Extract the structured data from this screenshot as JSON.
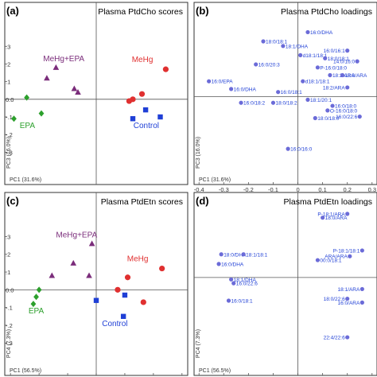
{
  "chart_data": [
    {
      "type": "scatter",
      "panel_label": "(a)",
      "title": "Plasma PtdCho scores",
      "xlabel": "PC1 (31.6%)",
      "ylabel": "PC3 (16.0%)",
      "xlim": [
        -0.5,
        0.5
      ],
      "ylim": [
        -0.42,
        0.45
      ],
      "xticks": [],
      "yticks": [
        {
          "v": 0.3,
          "t": ".3"
        },
        {
          "v": 0.2,
          "t": ".2"
        },
        {
          "v": 0.1,
          "t": ".1"
        },
        {
          "v": 0.0,
          "t": "0.0"
        },
        {
          "v": -0.1,
          "t": "-.1"
        },
        {
          "v": -0.2,
          "t": "-.2"
        },
        {
          "v": -0.3,
          "t": "-.3"
        }
      ],
      "series": [
        {
          "name": "MeHg+EPA",
          "color": "#7b2d7b",
          "marker": "triangle",
          "points": [
            {
              "x": -0.22,
              "y": 0.18
            },
            {
              "x": -0.27,
              "y": 0.12
            },
            {
              "x": -0.1,
              "y": 0.04
            },
            {
              "x": -0.12,
              "y": 0.06
            }
          ]
        },
        {
          "name": "MeHg",
          "color": "#e03030",
          "marker": "circle",
          "points": [
            {
              "x": 0.38,
              "y": 0.17
            },
            {
              "x": 0.25,
              "y": 0.03
            },
            {
              "x": 0.2,
              "y": 0.0
            },
            {
              "x": 0.18,
              "y": -0.01
            }
          ]
        },
        {
          "name": "EPA",
          "color": "#2ca02c",
          "marker": "diamond",
          "points": [
            {
              "x": -0.38,
              "y": 0.01
            },
            {
              "x": -0.45,
              "y": -0.11
            },
            {
              "x": -0.3,
              "y": -0.08
            }
          ]
        },
        {
          "name": "Control",
          "color": "#1f3fd6",
          "marker": "square",
          "points": [
            {
              "x": 0.27,
              "y": -0.06
            },
            {
              "x": 0.2,
              "y": -0.11
            },
            {
              "x": 0.35,
              "y": -0.1
            }
          ]
        }
      ]
    },
    {
      "type": "scatter",
      "panel_label": "(b)",
      "title": "Plasma PtdCho loadings",
      "xlabel": "PC1 (31.6%)",
      "ylabel": "PC3 (16.0%)",
      "xlim": [
        -0.42,
        0.32
      ],
      "ylim": [
        -0.5,
        0.5
      ],
      "xticks": [
        {
          "v": -0.4,
          "t": "-0.4"
        },
        {
          "v": -0.3,
          "t": "-0.3"
        },
        {
          "v": -0.2,
          "t": "-0.2"
        },
        {
          "v": -0.1,
          "t": "-0.1"
        },
        {
          "v": 0.0,
          "t": "0"
        },
        {
          "v": 0.1,
          "t": "0.1"
        },
        {
          "v": 0.2,
          "t": "0.2"
        },
        {
          "v": 0.3,
          "t": "0.3"
        }
      ],
      "yticks": [],
      "points": [
        {
          "label": "16:0/DHA",
          "x": 0.04,
          "y": 0.42
        },
        {
          "label": "18:0/18:1",
          "x": -0.14,
          "y": 0.36
        },
        {
          "label": "18:1/DHA",
          "x": -0.06,
          "y": 0.33
        },
        {
          "label": "16:0/16:1",
          "x": 0.2,
          "y": 0.3
        },
        {
          "label": "d18:1/18:1",
          "x": 0.01,
          "y": 0.27
        },
        {
          "label": "18:0/18:1",
          "x": 0.11,
          "y": 0.25
        },
        {
          "label": "14:0/16:0",
          "x": 0.24,
          "y": 0.23
        },
        {
          "label": "16:0/20:3",
          "x": -0.17,
          "y": 0.21
        },
        {
          "label": "P-16:0/18:0",
          "x": 0.08,
          "y": 0.19
        },
        {
          "label": "18:2/ARA",
          "x": 0.13,
          "y": 0.14
        },
        {
          "label": "16:0/EPA",
          "x": -0.36,
          "y": 0.1
        },
        {
          "label": "16:0/DHA",
          "x": -0.27,
          "y": 0.05
        },
        {
          "label": "d18:1/18:1",
          "x": 0.02,
          "y": 0.1
        },
        {
          "label": "18:0/ARA",
          "x": 0.18,
          "y": 0.14
        },
        {
          "label": "18:2/ARA",
          "x": 0.2,
          "y": 0.06
        },
        {
          "label": "16:0/18:1",
          "x": -0.08,
          "y": 0.03
        },
        {
          "label": "16:0/18:2",
          "x": -0.23,
          "y": -0.04
        },
        {
          "label": "18:0/18:2",
          "x": -0.1,
          "y": -0.04
        },
        {
          "label": "18:1/20:1",
          "x": 0.04,
          "y": -0.02
        },
        {
          "label": "16:0/18:0",
          "x": 0.14,
          "y": -0.06
        },
        {
          "label": "16:0/22:6",
          "x": 0.25,
          "y": -0.13
        },
        {
          "label": "18:0/18:0",
          "x": 0.07,
          "y": -0.14
        },
        {
          "label": "O-16:0/18:0",
          "x": 0.12,
          "y": -0.09
        },
        {
          "label": "16:0/16:0",
          "x": -0.04,
          "y": -0.34
        }
      ],
      "color": "#6b6bd8"
    },
    {
      "type": "scatter",
      "panel_label": "(c)",
      "title": "Plasma PtdEtn scores",
      "xlabel": "PC1 (56.5%)",
      "ylabel": "PC4 (7.3%)",
      "xlim": [
        -6.4,
        6.4
      ],
      "ylim": [
        -0.42,
        0.45
      ],
      "xticks": [
        {
          "v": -6,
          "t": "-6"
        },
        {
          "v": -4,
          "t": "-4"
        },
        {
          "v": -2,
          "t": "-2"
        },
        {
          "v": 0,
          "t": "0"
        },
        {
          "v": 2,
          "t": "2"
        },
        {
          "v": 4,
          "t": "4"
        },
        {
          "v": 6,
          "t": "6"
        }
      ],
      "yticks": [
        {
          "v": 0.3,
          "t": ".3"
        },
        {
          "v": 0.2,
          "t": ".2"
        },
        {
          "v": 0.1,
          "t": ".1"
        },
        {
          "v": 0.0,
          "t": "0.0"
        },
        {
          "v": -0.1,
          "t": "-.1"
        },
        {
          "v": -0.2,
          "t": "-.2"
        },
        {
          "v": -0.3,
          "t": "-.3"
        }
      ],
      "series": [
        {
          "name": "MeHg+EPA",
          "color": "#7b2d7b",
          "marker": "triangle",
          "points": [
            {
              "x": -0.3,
              "y": 0.26
            },
            {
              "x": -1.6,
              "y": 0.15
            },
            {
              "x": -3.1,
              "y": 0.08
            },
            {
              "x": -0.5,
              "y": 0.08
            }
          ]
        },
        {
          "name": "MeHg",
          "color": "#e03030",
          "marker": "circle",
          "points": [
            {
              "x": 4.6,
              "y": 0.12
            },
            {
              "x": 2.2,
              "y": 0.07
            },
            {
              "x": 1.5,
              "y": 0.0
            },
            {
              "x": 3.3,
              "y": -0.07
            }
          ]
        },
        {
          "name": "EPA",
          "color": "#2ca02c",
          "marker": "diamond",
          "points": [
            {
              "x": -4.0,
              "y": 0.0
            },
            {
              "x": -4.2,
              "y": -0.04
            },
            {
              "x": -4.4,
              "y": -0.08
            }
          ]
        },
        {
          "name": "Control",
          "color": "#1f3fd6",
          "marker": "square",
          "points": [
            {
              "x": 0.0,
              "y": -0.06
            },
            {
              "x": 2.0,
              "y": -0.03
            },
            {
              "x": 1.9,
              "y": -0.15
            }
          ]
        }
      ]
    },
    {
      "type": "scatter",
      "panel_label": "(d)",
      "title": "Plasma PtdEtn loadings",
      "xlabel": "PC1 (56.5%)",
      "ylabel": "PC4 (7.3%)",
      "xlim": [
        -0.42,
        0.32
      ],
      "ylim": [
        -0.45,
        0.35
      ],
      "xticks": [
        {
          "v": -0.4,
          "t": "-0.4"
        },
        {
          "v": -0.3,
          "t": "-0.3"
        },
        {
          "v": -0.2,
          "t": "-0.2"
        },
        {
          "v": -0.1,
          "t": "-0.1"
        },
        {
          "v": 0.0,
          "t": "0"
        },
        {
          "v": 0.1,
          "t": "0.1"
        },
        {
          "v": 0.2,
          "t": "0.2"
        },
        {
          "v": 0.3,
          "t": "0.3"
        }
      ],
      "yticks": [],
      "points": [
        {
          "label": "P-18:1/ARA",
          "x": 0.2,
          "y": 0.33
        },
        {
          "label": "18:0/ARA",
          "x": 0.1,
          "y": 0.31
        },
        {
          "label": "P-18:1/18:1",
          "x": 0.26,
          "y": 0.14
        },
        {
          "label": "18:0/DHA",
          "x": -0.31,
          "y": 0.12
        },
        {
          "label": "18:1/18:1",
          "x": -0.22,
          "y": 0.12
        },
        {
          "label": "16:0/DHA",
          "x": -0.32,
          "y": 0.07
        },
        {
          "label": "ARA/ARA",
          "x": 0.21,
          "y": 0.11
        },
        {
          "label": "00:0/18:1",
          "x": 0.08,
          "y": 0.09
        },
        {
          "label": "18:1/DHA",
          "x": -0.27,
          "y": -0.01
        },
        {
          "label": "16:0/22:6",
          "x": -0.26,
          "y": -0.03
        },
        {
          "label": "18:1/ARA",
          "x": 0.26,
          "y": -0.06
        },
        {
          "label": "16:0/18:1",
          "x": -0.28,
          "y": -0.12
        },
        {
          "label": "18:0/22:6",
          "x": 0.2,
          "y": -0.11
        },
        {
          "label": "16:0/ARA",
          "x": 0.26,
          "y": -0.13
        },
        {
          "label": "22:4/22:6",
          "x": 0.2,
          "y": -0.31
        }
      ],
      "color": "#6b6bd8"
    }
  ]
}
